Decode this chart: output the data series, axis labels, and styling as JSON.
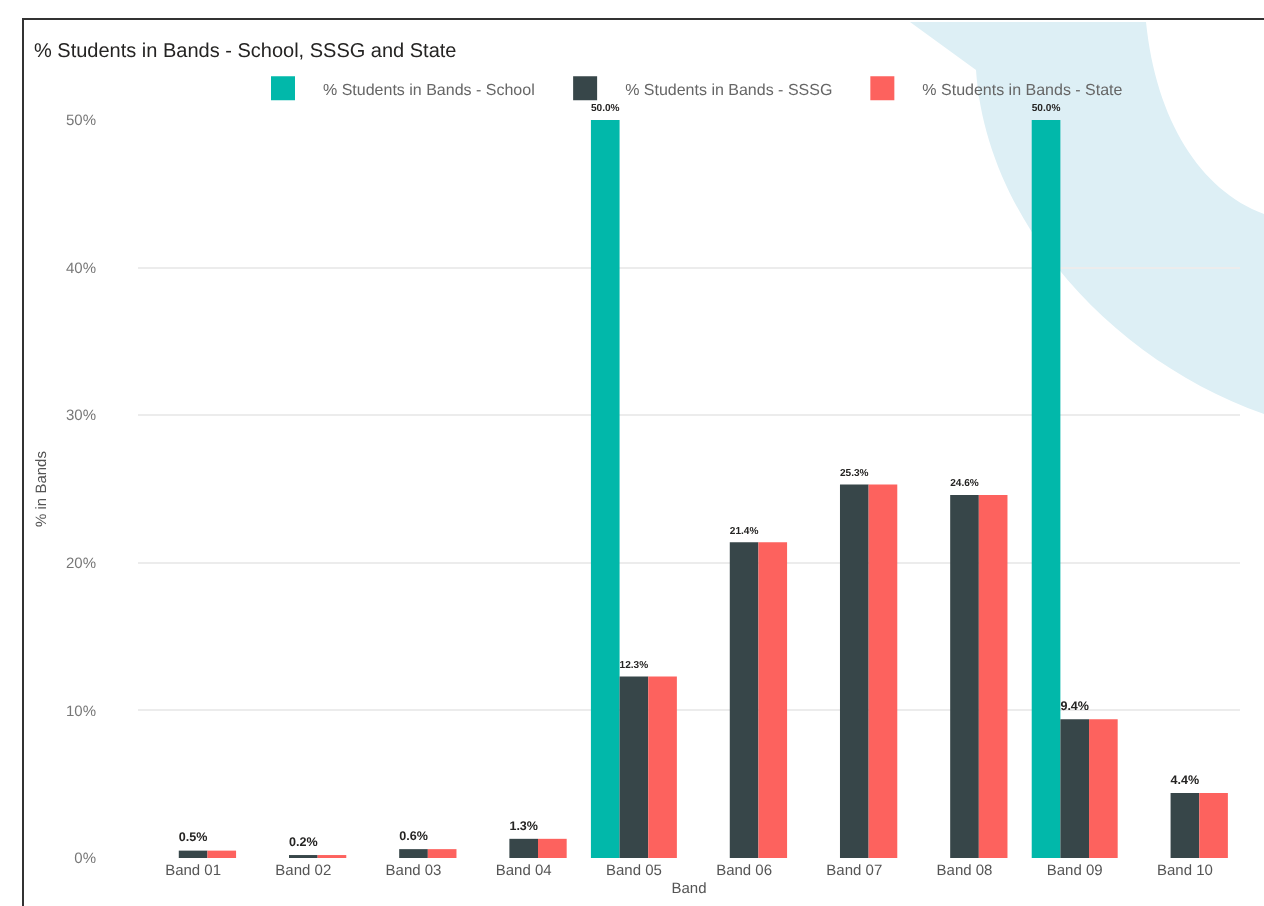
{
  "chart_data": {
    "type": "bar",
    "title": "% Students in Bands - School, SSSG and State",
    "xlabel": "Band",
    "ylabel": "% in Bands",
    "categories": [
      "Band 01",
      "Band 02",
      "Band 03",
      "Band 04",
      "Band 05",
      "Band 06",
      "Band 07",
      "Band 08",
      "Band 09",
      "Band 10"
    ],
    "series": [
      {
        "name": "% Students in Bands - School",
        "color": "#01b8aa",
        "values": [
          null,
          null,
          null,
          null,
          50,
          null,
          null,
          null,
          50,
          null
        ],
        "value_labels": [
          null,
          null,
          null,
          null,
          "50.0%",
          null,
          null,
          null,
          "50.0%",
          null
        ]
      },
      {
        "name": "% Students in Bands - SSSG",
        "color": "#374649",
        "values": [
          0.5,
          0.2,
          0.6,
          1.3,
          12.3,
          21.4,
          25.3,
          24.6,
          9.4,
          4.4
        ],
        "value_labels": [
          "0.5%",
          "0.2%",
          "0.6%",
          "1.3%",
          "12.3%",
          "21.4%",
          "25.3%",
          "24.6%",
          "9.4%",
          "4.4%"
        ]
      },
      {
        "name": "% Students in Bands - State",
        "color": "#fd625e",
        "values": [
          0.5,
          0.2,
          0.6,
          1.3,
          12.3,
          21.4,
          25.3,
          24.6,
          9.4,
          4.4
        ]
      }
    ],
    "ylim": [
      0,
      50
    ],
    "yticks": [
      {
        "value": 0,
        "label": "0%"
      },
      {
        "value": 10,
        "label": "10%"
      },
      {
        "value": 20,
        "label": "20%"
      },
      {
        "value": 30,
        "label": "30%"
      },
      {
        "value": 40,
        "label": "40%"
      },
      {
        "value": 50,
        "label": "50%"
      }
    ],
    "grid": "y",
    "legend": "top"
  }
}
